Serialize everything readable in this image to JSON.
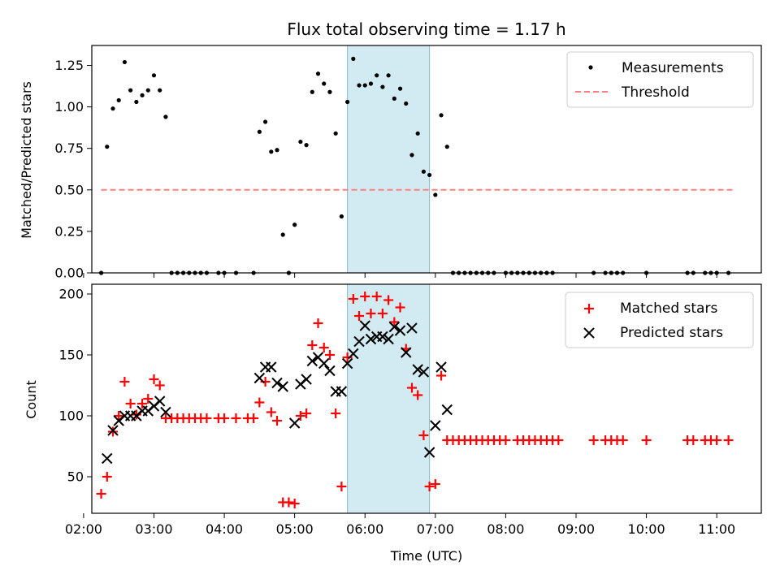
{
  "chart_data": [
    {
      "type": "scatter",
      "title": "Flux total observing time = 1.17 h",
      "xlabel": "",
      "ylabel": "Matched/Predicted stars",
      "xlim": [
        "02:07",
        "11:38"
      ],
      "ylim": [
        0,
        1.37
      ],
      "yticks": [
        "0.00",
        "0.25",
        "0.50",
        "0.75",
        "1.00",
        "1.25"
      ],
      "legend_position": "top-right",
      "grid": false,
      "highlight_span": {
        "from": "05:45",
        "to": "06:55",
        "color": "#add8e6"
      },
      "series": [
        {
          "name": "Measurements",
          "kind": "dot",
          "color": "#000000",
          "points": [
            [
              "02:15",
              0.0
            ],
            [
              "02:20",
              0.76
            ],
            [
              "02:25",
              0.99
            ],
            [
              "02:30",
              1.04
            ],
            [
              "02:35",
              1.27
            ],
            [
              "02:40",
              1.1
            ],
            [
              "02:45",
              1.03
            ],
            [
              "02:50",
              1.07
            ],
            [
              "02:55",
              1.1
            ],
            [
              "03:00",
              1.19
            ],
            [
              "03:05",
              1.1
            ],
            [
              "03:10",
              0.94
            ],
            [
              "03:15",
              0.0
            ],
            [
              "03:20",
              0.0
            ],
            [
              "03:25",
              0.0
            ],
            [
              "03:30",
              0.0
            ],
            [
              "03:35",
              0.0
            ],
            [
              "03:40",
              0.0
            ],
            [
              "03:45",
              0.0
            ],
            [
              "03:55",
              0.0
            ],
            [
              "04:00",
              0.0
            ],
            [
              "04:10",
              0.0
            ],
            [
              "04:25",
              0.0
            ],
            [
              "04:30",
              0.85
            ],
            [
              "04:35",
              0.91
            ],
            [
              "04:40",
              0.73
            ],
            [
              "04:45",
              0.74
            ],
            [
              "04:50",
              0.23
            ],
            [
              "04:55",
              0.0
            ],
            [
              "05:00",
              0.29
            ],
            [
              "05:05",
              0.79
            ],
            [
              "05:10",
              0.77
            ],
            [
              "05:15",
              1.09
            ],
            [
              "05:20",
              1.2
            ],
            [
              "05:25",
              1.14
            ],
            [
              "05:30",
              1.09
            ],
            [
              "05:35",
              0.84
            ],
            [
              "05:40",
              0.34
            ],
            [
              "05:45",
              1.03
            ],
            [
              "05:50",
              1.29
            ],
            [
              "05:55",
              1.13
            ],
            [
              "06:00",
              1.13
            ],
            [
              "06:05",
              1.14
            ],
            [
              "06:10",
              1.19
            ],
            [
              "06:15",
              1.12
            ],
            [
              "06:20",
              1.19
            ],
            [
              "06:25",
              1.05
            ],
            [
              "06:30",
              1.11
            ],
            [
              "06:35",
              1.02
            ],
            [
              "06:40",
              0.71
            ],
            [
              "06:45",
              0.84
            ],
            [
              "06:50",
              0.61
            ],
            [
              "06:55",
              0.59
            ],
            [
              "07:00",
              0.47
            ],
            [
              "07:05",
              0.95
            ],
            [
              "07:10",
              0.76
            ],
            [
              "07:15",
              0.0
            ],
            [
              "07:20",
              0.0
            ],
            [
              "07:25",
              0.0
            ],
            [
              "07:30",
              0.0
            ],
            [
              "07:35",
              0.0
            ],
            [
              "07:40",
              0.0
            ],
            [
              "07:45",
              0.0
            ],
            [
              "07:50",
              0.0
            ],
            [
              "08:00",
              0.0
            ],
            [
              "08:05",
              0.0
            ],
            [
              "08:10",
              0.0
            ],
            [
              "08:15",
              0.0
            ],
            [
              "08:20",
              0.0
            ],
            [
              "08:25",
              0.0
            ],
            [
              "08:30",
              0.0
            ],
            [
              "08:35",
              0.0
            ],
            [
              "08:40",
              0.0
            ],
            [
              "09:15",
              0.0
            ],
            [
              "09:25",
              0.0
            ],
            [
              "09:30",
              0.0
            ],
            [
              "09:35",
              0.0
            ],
            [
              "09:40",
              0.0
            ],
            [
              "10:00",
              0.0
            ],
            [
              "10:35",
              0.0
            ],
            [
              "10:40",
              0.0
            ],
            [
              "10:50",
              0.0
            ],
            [
              "10:55",
              0.0
            ],
            [
              "11:00",
              0.0
            ],
            [
              "11:10",
              0.0
            ]
          ]
        },
        {
          "name": "Threshold",
          "kind": "dashed-line",
          "color": "#ff7f7f",
          "points": [
            [
              "02:15",
              0.5
            ],
            [
              "11:15",
              0.5
            ]
          ]
        }
      ],
      "x_ticks_visible_labels": false
    },
    {
      "type": "scatter",
      "title": "",
      "xlabel": "Time (UTC)",
      "ylabel": "Count",
      "xlim": [
        "02:07",
        "11:38"
      ],
      "ylim": [
        20,
        208
      ],
      "xticks": [
        "02:00",
        "03:00",
        "04:00",
        "05:00",
        "06:00",
        "07:00",
        "08:00",
        "09:00",
        "10:00",
        "11:00"
      ],
      "yticks": [
        "50",
        "100",
        "150",
        "200"
      ],
      "legend_position": "top-right",
      "grid": false,
      "highlight_span": {
        "from": "05:45",
        "to": "06:55",
        "color": "#add8e6"
      },
      "series": [
        {
          "name": "Matched stars",
          "kind": "plus",
          "color": "#ff0000",
          "points": [
            [
              "02:15",
              36
            ],
            [
              "02:20",
              50
            ],
            [
              "02:25",
              87
            ],
            [
              "02:30",
              100
            ],
            [
              "02:35",
              128
            ],
            [
              "02:40",
              110
            ],
            [
              "02:45",
              101
            ],
            [
              "02:50",
              110
            ],
            [
              "02:55",
              114
            ],
            [
              "03:00",
              130
            ],
            [
              "03:05",
              125
            ],
            [
              "03:10",
              98
            ],
            [
              "03:15",
              98
            ],
            [
              "03:20",
              98
            ],
            [
              "03:25",
              98
            ],
            [
              "03:30",
              98
            ],
            [
              "03:35",
              98
            ],
            [
              "03:40",
              98
            ],
            [
              "03:45",
              98
            ],
            [
              "03:55",
              98
            ],
            [
              "04:00",
              98
            ],
            [
              "04:10",
              98
            ],
            [
              "04:20",
              98
            ],
            [
              "04:25",
              98
            ],
            [
              "04:30",
              111
            ],
            [
              "04:35",
              128
            ],
            [
              "04:40",
              103
            ],
            [
              "04:45",
              96
            ],
            [
              "04:50",
              29
            ],
            [
              "04:55",
              29
            ],
            [
              "05:00",
              28
            ],
            [
              "05:05",
              100
            ],
            [
              "05:10",
              102
            ],
            [
              "05:15",
              158
            ],
            [
              "05:20",
              176
            ],
            [
              "05:25",
              156
            ],
            [
              "05:30",
              150
            ],
            [
              "05:35",
              102
            ],
            [
              "05:40",
              42
            ],
            [
              "05:45",
              148
            ],
            [
              "05:50",
              196
            ],
            [
              "05:55",
              182
            ],
            [
              "06:00",
              198
            ],
            [
              "06:05",
              184
            ],
            [
              "06:10",
              198
            ],
            [
              "06:15",
              184
            ],
            [
              "06:20",
              195
            ],
            [
              "06:25",
              177
            ],
            [
              "06:30",
              189
            ],
            [
              "06:35",
              155
            ],
            [
              "06:40",
              123
            ],
            [
              "06:45",
              117
            ],
            [
              "06:50",
              84
            ],
            [
              "06:55",
              42
            ],
            [
              "07:00",
              44
            ],
            [
              "07:05",
              133
            ],
            [
              "07:10",
              80
            ],
            [
              "07:15",
              80
            ],
            [
              "07:20",
              80
            ],
            [
              "07:25",
              80
            ],
            [
              "07:30",
              80
            ],
            [
              "07:35",
              80
            ],
            [
              "07:40",
              80
            ],
            [
              "07:45",
              80
            ],
            [
              "07:50",
              80
            ],
            [
              "07:55",
              80
            ],
            [
              "08:00",
              80
            ],
            [
              "08:10",
              80
            ],
            [
              "08:15",
              80
            ],
            [
              "08:20",
              80
            ],
            [
              "08:25",
              80
            ],
            [
              "08:30",
              80
            ],
            [
              "08:35",
              80
            ],
            [
              "08:40",
              80
            ],
            [
              "08:45",
              80
            ],
            [
              "09:15",
              80
            ],
            [
              "09:25",
              80
            ],
            [
              "09:30",
              80
            ],
            [
              "09:35",
              80
            ],
            [
              "09:40",
              80
            ],
            [
              "10:00",
              80
            ],
            [
              "10:35",
              80
            ],
            [
              "10:40",
              80
            ],
            [
              "10:50",
              80
            ],
            [
              "10:55",
              80
            ],
            [
              "11:00",
              80
            ],
            [
              "11:10",
              80
            ]
          ]
        },
        {
          "name": "Predicted stars",
          "kind": "cross",
          "color": "#000000",
          "points": [
            [
              "02:20",
              65
            ],
            [
              "02:25",
              88
            ],
            [
              "02:30",
              96
            ],
            [
              "02:35",
              100
            ],
            [
              "02:40",
              100
            ],
            [
              "02:45",
              100
            ],
            [
              "02:50",
              104
            ],
            [
              "02:55",
              104
            ],
            [
              "03:00",
              108
            ],
            [
              "03:05",
              112
            ],
            [
              "03:10",
              103
            ],
            [
              "04:30",
              131
            ],
            [
              "04:35",
              140
            ],
            [
              "04:40",
              140
            ],
            [
              "04:45",
              127
            ],
            [
              "04:50",
              124
            ],
            [
              "05:00",
              94
            ],
            [
              "05:05",
              126
            ],
            [
              "05:10",
              130
            ],
            [
              "05:15",
              145
            ],
            [
              "05:20",
              148
            ],
            [
              "05:25",
              143
            ],
            [
              "05:30",
              137
            ],
            [
              "05:35",
              120
            ],
            [
              "05:40",
              120
            ],
            [
              "05:45",
              143
            ],
            [
              "05:50",
              151
            ],
            [
              "05:55",
              161
            ],
            [
              "06:00",
              174
            ],
            [
              "06:05",
              163
            ],
            [
              "06:10",
              165
            ],
            [
              "06:15",
              165
            ],
            [
              "06:20",
              163
            ],
            [
              "06:25",
              173
            ],
            [
              "06:30",
              170
            ],
            [
              "06:35",
              152
            ],
            [
              "06:40",
              172
            ],
            [
              "06:45",
              138
            ],
            [
              "06:50",
              136
            ],
            [
              "06:55",
              70
            ],
            [
              "07:00",
              92
            ],
            [
              "07:05",
              140
            ],
            [
              "07:10",
              105
            ]
          ]
        }
      ]
    }
  ]
}
